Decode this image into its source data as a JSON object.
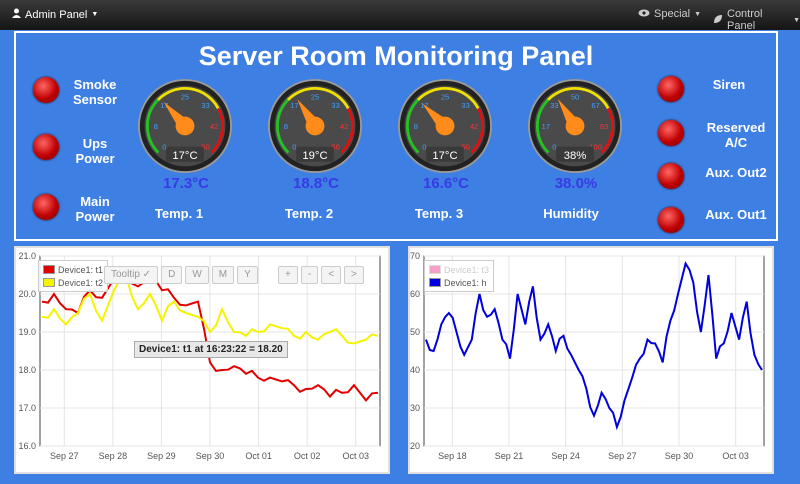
{
  "navbar": {
    "admin_label": "Admin Panel",
    "special_label": "Special",
    "control_label": "Control Panel"
  },
  "panel": {
    "title": "Server Room Monitoring Panel",
    "left_indicators": [
      {
        "label": "Smoke Sensor",
        "line1": "Smoke",
        "line2": "Sensor"
      },
      {
        "label": "Ups Power",
        "line1": "Ups",
        "line2": "Power"
      },
      {
        "label": "Main Power",
        "line1": "Main",
        "line2": "Power"
      }
    ],
    "right_indicators": [
      {
        "line1": "Siren",
        "line2": ""
      },
      {
        "line1": "Reserved",
        "line2": "A/C"
      },
      {
        "line1": "Aux. Out2",
        "line2": ""
      },
      {
        "line1": "Aux. Out1",
        "line2": ""
      }
    ],
    "gauges": [
      {
        "label": "Temp. 1",
        "display": "17°C",
        "reading": "17.3°C",
        "value": 17.3,
        "min": 0,
        "max": 50,
        "ticks": [
          "0",
          "8",
          "17",
          "25",
          "33",
          "42",
          "50"
        ]
      },
      {
        "label": "Temp. 2",
        "display": "19°C",
        "reading": "18.8°C",
        "value": 18.8,
        "min": 0,
        "max": 50,
        "ticks": [
          "0",
          "8",
          "17",
          "25",
          "33",
          "42",
          "50"
        ]
      },
      {
        "label": "Temp. 3",
        "display": "17°C",
        "reading": "16.6°C",
        "value": 16.6,
        "min": 0,
        "max": 50,
        "ticks": [
          "0",
          "8",
          "17",
          "25",
          "33",
          "42",
          "50"
        ]
      },
      {
        "label": "Humidity",
        "display": "38%",
        "reading": "38.0%",
        "value": 38.0,
        "min": 0,
        "max": 100,
        "ticks": [
          "0",
          "17",
          "33",
          "50",
          "67",
          "83",
          "100"
        ]
      }
    ],
    "colors": {
      "gauge_green": "#22c422",
      "gauge_yellow": "#f0e000",
      "gauge_red": "#e01010",
      "needle": "#ff8c1a",
      "led": "#d40000"
    }
  },
  "toolbar": {
    "tooltip": "Tooltip",
    "buttons": [
      "D",
      "W",
      "M",
      "Y"
    ],
    "nav": [
      "+",
      "-",
      "<",
      ">"
    ]
  },
  "tooltip_text": "Device1: t1 at 16:23:22 = 18.20",
  "chart_data": [
    {
      "type": "line",
      "x_ticks": [
        "Sep 27",
        "Sep 28",
        "Sep 29",
        "Sep 30",
        "Oct 01",
        "Oct 02",
        "Oct 03"
      ],
      "y_ticks": [
        "16.0",
        "17.0",
        "18.0",
        "19.0",
        "20.0",
        "21.0"
      ],
      "ylim": [
        16.0,
        21.0
      ],
      "grid": true,
      "legend_position": "top-left",
      "series": [
        {
          "name": "Device1: t1",
          "color": "#e00000",
          "values": [
            19.8,
            20.0,
            19.6,
            19.5,
            20.1,
            19.9,
            20.4,
            20.6,
            20.2,
            20.5,
            20.1,
            19.9,
            19.7,
            19.8,
            18.2,
            18.0,
            18.1,
            17.9,
            17.8,
            17.8,
            17.7,
            17.6,
            17.5,
            17.6,
            17.3,
            17.4,
            17.6,
            17.2,
            17.4
          ]
        },
        {
          "name": "Device1: t2",
          "color": "#f4f400",
          "values": [
            19.4,
            19.6,
            19.2,
            19.5,
            20.0,
            19.3,
            20.1,
            20.5,
            19.6,
            20.0,
            19.3,
            19.8,
            19.5,
            19.4,
            19.0,
            19.6,
            19.0,
            18.9,
            19.0,
            19.2,
            19.1,
            18.9,
            19.0,
            18.8,
            19.0,
            18.9,
            18.7,
            18.8,
            18.9
          ]
        }
      ]
    },
    {
      "type": "line",
      "x_ticks": [
        "Sep 18",
        "Sep 21",
        "Sep 24",
        "Sep 27",
        "Sep 30",
        "Oct 03"
      ],
      "y_ticks": [
        "20",
        "30",
        "40",
        "50",
        "60",
        "70"
      ],
      "ylim": [
        20,
        70
      ],
      "grid": true,
      "legend_position": "top-left",
      "series": [
        {
          "name": "Device1: t3",
          "color": "#f4a0c8",
          "values": []
        },
        {
          "name": "Device1: h",
          "color": "#0000dd",
          "values": [
            48,
            45,
            52,
            55,
            50,
            44,
            48,
            60,
            54,
            56,
            48,
            43,
            60,
            52,
            62,
            48,
            52,
            45,
            49,
            44,
            40,
            35,
            28,
            34,
            30,
            25,
            32,
            38,
            43,
            48,
            47,
            42,
            53,
            60,
            68,
            63,
            50,
            65,
            43,
            47,
            55,
            48,
            58,
            44,
            40
          ]
        }
      ]
    }
  ]
}
